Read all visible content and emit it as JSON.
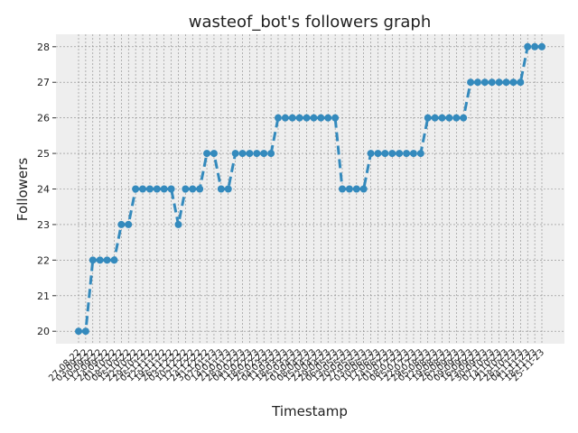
{
  "chart_data": {
    "type": "line",
    "title": "wasteof_bot's followers graph",
    "x_label": "Timestamp",
    "y_label": "Followers",
    "categories": [
      "27-08-22",
      "03-09-22",
      "10-09-22",
      "17-09-22",
      "24-09-22",
      "01-10-22",
      "08-10-22",
      "15-10-22",
      "22-10-22",
      "29-10-22",
      "05-11-22",
      "12-11-22",
      "19-11-22",
      "26-11-22",
      "03-12-22",
      "10-12-22",
      "17-12-22",
      "24-12-22",
      "31-12-22",
      "07-01-23",
      "14-01-23",
      "21-01-23",
      "28-01-23",
      "04-02-23",
      "11-02-23",
      "18-02-23",
      "25-02-23",
      "04-03-23",
      "11-03-23",
      "18-03-23",
      "25-03-23",
      "01-04-23",
      "08-04-23",
      "15-04-23",
      "22-04-23",
      "29-04-23",
      "06-05-23",
      "13-05-23",
      "20-05-23",
      "27-05-23",
      "03-06-23",
      "10-06-23",
      "17-06-23",
      "24-06-23",
      "01-07-23",
      "08-07-23",
      "15-07-23",
      "22-07-23",
      "29-07-23",
      "05-08-23",
      "12-08-23",
      "19-08-23",
      "26-08-23",
      "02-09-23",
      "09-09-23",
      "16-09-23",
      "23-09-23",
      "30-09-23",
      "07-10-23",
      "14-10-23",
      "21-10-23",
      "28-10-23",
      "04-11-23",
      "11-11-23",
      "18-11-23",
      "25-11-23"
    ],
    "values": [
      20,
      20,
      22,
      22,
      22,
      22,
      23,
      23,
      24,
      24,
      24,
      24,
      24,
      24,
      23,
      24,
      24,
      24,
      25,
      25,
      24,
      24,
      25,
      25,
      25,
      25,
      25,
      25,
      26,
      26,
      26,
      26,
      26,
      26,
      26,
      26,
      26,
      24,
      24,
      24,
      24,
      25,
      25,
      25,
      25,
      25,
      25,
      25,
      25,
      26,
      26,
      26,
      26,
      26,
      26,
      27,
      27,
      27,
      27,
      27,
      27,
      27,
      27,
      28,
      28,
      28
    ],
    "color": "#348ABD",
    "line_style": "dashed",
    "markers": true,
    "ylim": [
      19.65,
      28.35
    ],
    "yticks": [
      20,
      21,
      22,
      23,
      24,
      25,
      26,
      27,
      28
    ],
    "grid": true
  }
}
